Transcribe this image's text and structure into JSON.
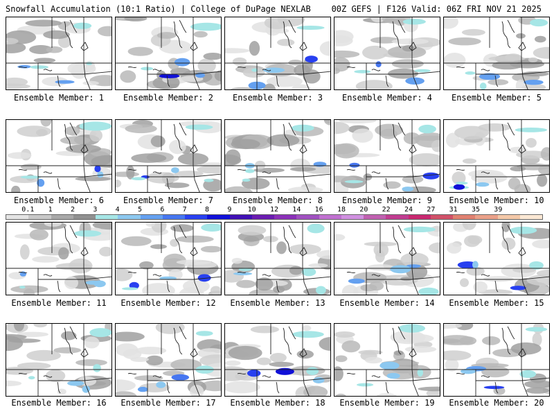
{
  "header": {
    "left": "Snowfall Accumulation (10:1 Ratio) | College of DuPage NEXLAB",
    "right": "00Z GEFS | F126 Valid: 06Z FRI NOV 21 2025"
  },
  "legend": {
    "labels": [
      "0.1",
      "1",
      "2",
      "3",
      "4",
      "5",
      "6",
      "7",
      "8",
      "9",
      "10",
      "12",
      "14",
      "16",
      "18",
      "20",
      "22",
      "24",
      "27",
      "31",
      "35",
      "39"
    ],
    "colors": [
      "#e4e4e4",
      "#c8c8c8",
      "#a8a8a8",
      "#909090",
      "#a6e6e6",
      "#8cc8f0",
      "#64a0f0",
      "#4676f0",
      "#2840f0",
      "#1010d8",
      "#4010b4",
      "#6a1cb0",
      "#8a30b8",
      "#a050c0",
      "#c070d0",
      "#d090e0",
      "#c060b0",
      "#c03c90",
      "#c82870",
      "#d05068",
      "#e08070",
      "#eaa088",
      "#f4c8a8",
      "#fbe8d4"
    ]
  },
  "members": [
    {
      "label": "Ensemble Member: 1"
    },
    {
      "label": "Ensemble Member: 2"
    },
    {
      "label": "Ensemble Member: 3"
    },
    {
      "label": "Ensemble Member: 4"
    },
    {
      "label": "Ensemble Member: 5"
    },
    {
      "label": "Ensemble Member: 6"
    },
    {
      "label": "Ensemble Member: 7"
    },
    {
      "label": "Ensemble Member: 8"
    },
    {
      "label": "Ensemble Member: 9"
    },
    {
      "label": "Ensemble Member: 10"
    },
    {
      "label": "Ensemble Member: 11"
    },
    {
      "label": "Ensemble Member: 12"
    },
    {
      "label": "Ensemble Member: 13"
    },
    {
      "label": "Ensemble Member: 14"
    },
    {
      "label": "Ensemble Member: 15"
    },
    {
      "label": "Ensemble Member: 16"
    },
    {
      "label": "Ensemble Member: 17"
    },
    {
      "label": "Ensemble Member: 18"
    },
    {
      "label": "Ensemble Member: 19"
    },
    {
      "label": "Ensemble Member: 20"
    }
  ]
}
